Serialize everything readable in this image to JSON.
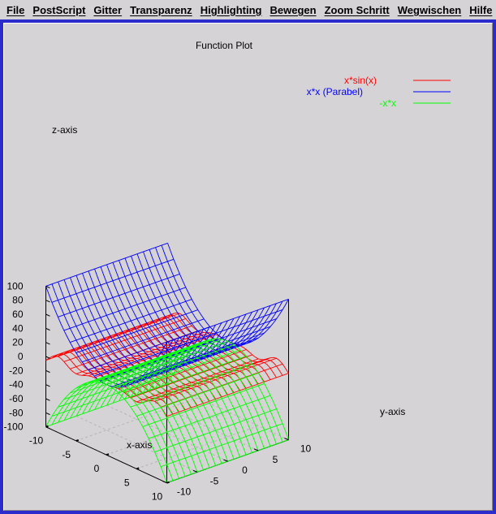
{
  "menu": [
    {
      "label": "File",
      "id": "file"
    },
    {
      "label": "PostScript",
      "id": "postscript"
    },
    {
      "label": "Gitter",
      "id": "gitter"
    },
    {
      "label": "Transparenz",
      "id": "transparenz"
    },
    {
      "label": "Highlighting",
      "id": "highlighting"
    },
    {
      "label": "Bewegen",
      "id": "bewegen"
    },
    {
      "label": "Zoom Schritt",
      "id": "zoom-schritt"
    },
    {
      "label": "Wegwischen",
      "id": "wegwischen"
    },
    {
      "label": "Hilfe",
      "id": "hilfe"
    }
  ],
  "colors": {
    "frame": "#2c2ccc",
    "background": "#d6d3d6",
    "axes": "#000000",
    "grid": "#b6b4b6"
  },
  "chart_data": {
    "type": "surface3d",
    "title": "Function Plot",
    "xlabel": "x-axis",
    "ylabel": "y-axis",
    "zlabel": "z-axis",
    "xlim": [
      -10,
      10
    ],
    "ylim": [
      -10,
      10
    ],
    "zlim": [
      -100,
      100
    ],
    "x_ticks": [
      "-10",
      "-5",
      "0",
      "5",
      "10"
    ],
    "y_ticks": [
      "-10",
      "-5",
      "0",
      "5",
      "10"
    ],
    "z_ticks": [
      "100",
      "80",
      "60",
      "40",
      "20",
      "0",
      "-20",
      "-40",
      "-60",
      "-80",
      "-100"
    ],
    "grid": true,
    "legend_position": "top-right",
    "series": [
      {
        "name": "x*sin(x)",
        "function": "x*sin(x)",
        "color": "#ff0000"
      },
      {
        "name": "x*x (Parabel)",
        "function": "x*x",
        "color": "#0000ff"
      },
      {
        "name": "-x*x",
        "function": "-x*x",
        "color": "#00ff00"
      }
    ]
  }
}
